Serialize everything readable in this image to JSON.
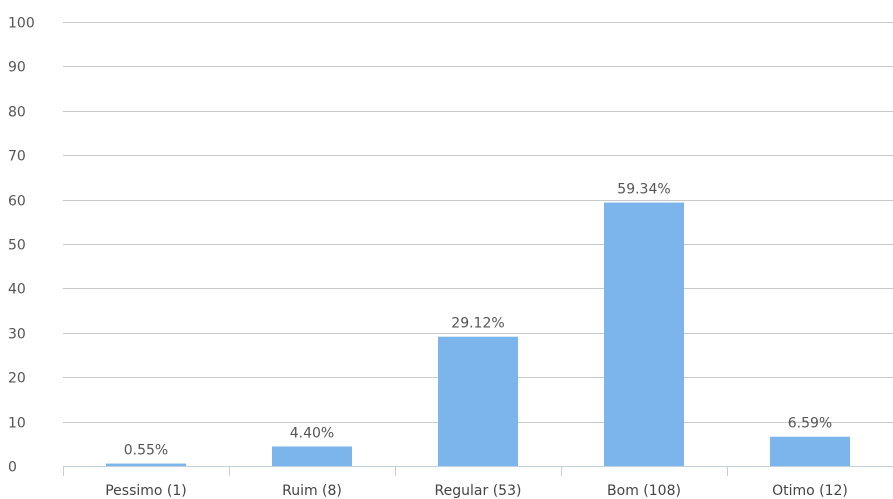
{
  "chart_data": {
    "type": "bar",
    "categories": [
      "Pessimo (1)",
      "Ruim (8)",
      "Regular (53)",
      "Bom (108)",
      "Otimo (12)"
    ],
    "values": [
      0.55,
      4.4,
      29.12,
      59.34,
      6.59
    ],
    "data_labels": [
      "0.55%",
      "4.40%",
      "29.12%",
      "59.34%",
      "6.59%"
    ],
    "y_ticks": [
      "0",
      "10",
      "20",
      "30",
      "40",
      "50",
      "60",
      "70",
      "80",
      "90",
      "100"
    ],
    "ylim": [
      0,
      100
    ],
    "grid": true,
    "legend": "none",
    "title": "",
    "xlabel": "",
    "ylabel": "",
    "colors": {
      "bar": "#7cb5ec",
      "grid": "#c8c8c8",
      "axis": "#c0d0e0"
    }
  }
}
